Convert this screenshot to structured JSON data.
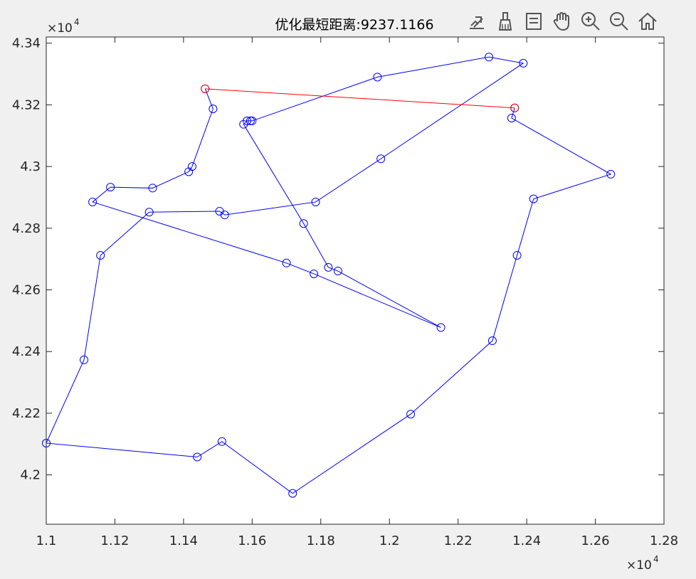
{
  "toolbar": {
    "icons": [
      "export-icon",
      "brush-icon",
      "legend-icon",
      "pan-hand-icon",
      "zoom-in-icon",
      "zoom-out-icon",
      "home-icon"
    ]
  },
  "colors": {
    "route": "#0000ff",
    "closing_edge": "#ff0000",
    "axes": "#262626"
  },
  "chart_data": {
    "type": "line",
    "title": "优化最短距离:9237.1166",
    "xlabel": "",
    "ylabel": "",
    "xlim": [
      11000,
      12800
    ],
    "ylim": [
      41840,
      43420
    ],
    "x_exponent_label": "×10",
    "y_exponent_label": "×10",
    "exponent": "4",
    "xticks": [
      11000,
      11200,
      11400,
      11600,
      11800,
      12000,
      12200,
      12400,
      12600,
      12800
    ],
    "xtick_labels": [
      "1.1",
      "1.12",
      "1.14",
      "1.16",
      "1.18",
      "1.2",
      "1.22",
      "1.24",
      "1.26",
      "1.28"
    ],
    "yticks": [
      42000,
      42200,
      42400,
      42600,
      42800,
      43000,
      43200,
      43400
    ],
    "ytick_labels": [
      "4.2",
      "4.22",
      "4.24",
      "4.26",
      "4.28",
      "4.3",
      "4.32",
      "4.34"
    ],
    "grid": false,
    "marker": "circle",
    "series": [
      {
        "style": "route",
        "color": "#0000ff",
        "points": [
          [
            11463,
            43252
          ],
          [
            11486,
            43187
          ],
          [
            11425,
            43000
          ],
          [
            11415,
            42983
          ],
          [
            11310,
            42930
          ],
          [
            11187,
            42933
          ],
          [
            11135,
            42885
          ],
          [
            11700,
            42687
          ],
          [
            11780,
            42652
          ],
          [
            12150,
            42478
          ],
          [
            11850,
            42661
          ],
          [
            11822,
            42673
          ],
          [
            11750,
            42815
          ],
          [
            11575,
            43137
          ],
          [
            11585,
            43148
          ],
          [
            11595,
            43148
          ],
          [
            11600,
            43148
          ],
          [
            11965,
            43290
          ],
          [
            12290,
            43355
          ],
          [
            12390,
            43335
          ],
          [
            11975,
            43025
          ],
          [
            11785,
            42885
          ],
          [
            11520,
            42843
          ],
          [
            11505,
            42855
          ],
          [
            11300,
            42852
          ],
          [
            11158,
            42712
          ],
          [
            11110,
            42373
          ],
          [
            11000,
            42103
          ],
          [
            11440,
            42058
          ],
          [
            11512,
            42108
          ],
          [
            11718,
            41940
          ],
          [
            12062,
            42197
          ],
          [
            12300,
            42435
          ],
          [
            12372,
            42712
          ],
          [
            12420,
            42895
          ],
          [
            12645,
            42975
          ],
          [
            12356,
            43157
          ],
          [
            12365,
            43190
          ]
        ]
      },
      {
        "style": "closing_edge",
        "color": "#ff0000",
        "points": [
          [
            12365,
            43190
          ],
          [
            11463,
            43252
          ]
        ]
      }
    ]
  }
}
